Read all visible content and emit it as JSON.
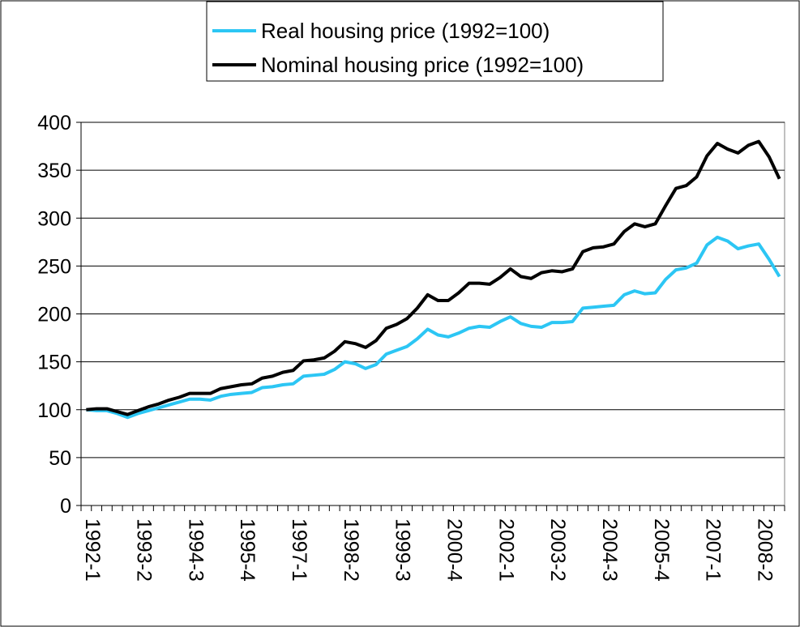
{
  "chart_data": {
    "type": "line",
    "categories": [
      "1992-1",
      null,
      null,
      null,
      null,
      "1993-2",
      null,
      null,
      null,
      null,
      "1994-3",
      null,
      null,
      null,
      null,
      "1995-4",
      null,
      null,
      null,
      null,
      "1997-1",
      null,
      null,
      null,
      null,
      "1998-2",
      null,
      null,
      null,
      null,
      "1999-3",
      null,
      null,
      null,
      null,
      "2000-4",
      null,
      null,
      null,
      null,
      "2002-1",
      null,
      null,
      null,
      null,
      "2003-2",
      null,
      null,
      null,
      null,
      "2004-3",
      null,
      null,
      null,
      null,
      "2005-4",
      null,
      null,
      null,
      null,
      "2007-1",
      null,
      null,
      null,
      null,
      "2008-2",
      null,
      null
    ],
    "series": [
      {
        "name": "Real housing price (1992=100)",
        "color": "#2cc6f4",
        "values": [
          100,
          99,
          99,
          96,
          92,
          96,
          99,
          102,
          105,
          108,
          111,
          111,
          110,
          114,
          116,
          117,
          118,
          123,
          124,
          126,
          127,
          135,
          136,
          137,
          142,
          150,
          148,
          143,
          147,
          158,
          162,
          166,
          174,
          184,
          178,
          176,
          180,
          185,
          187,
          186,
          192,
          197,
          190,
          187,
          186,
          191,
          191,
          192,
          206,
          207,
          208,
          209,
          220,
          224,
          221,
          222,
          236,
          246,
          248,
          253,
          272,
          280,
          276,
          268,
          271,
          273,
          257,
          239
        ]
      },
      {
        "name": "Nominal housing price (1992=100)",
        "color": "#000000",
        "values": [
          100,
          101,
          101,
          98,
          95,
          99,
          103,
          106,
          110,
          113,
          117,
          117,
          117,
          122,
          124,
          126,
          127,
          133,
          135,
          139,
          141,
          151,
          152,
          154,
          161,
          171,
          169,
          165,
          172,
          185,
          189,
          195,
          206,
          220,
          214,
          214,
          222,
          232,
          232,
          231,
          238,
          247,
          239,
          237,
          243,
          245,
          244,
          247,
          265,
          269,
          270,
          273,
          286,
          294,
          291,
          294,
          313,
          331,
          334,
          343,
          365,
          378,
          372,
          368,
          376,
          380,
          364,
          341
        ]
      }
    ],
    "ylim": [
      0,
      400
    ],
    "yticks": [
      0,
      50,
      100,
      150,
      200,
      250,
      300,
      350,
      400
    ],
    "grid": true,
    "legend": "top"
  }
}
